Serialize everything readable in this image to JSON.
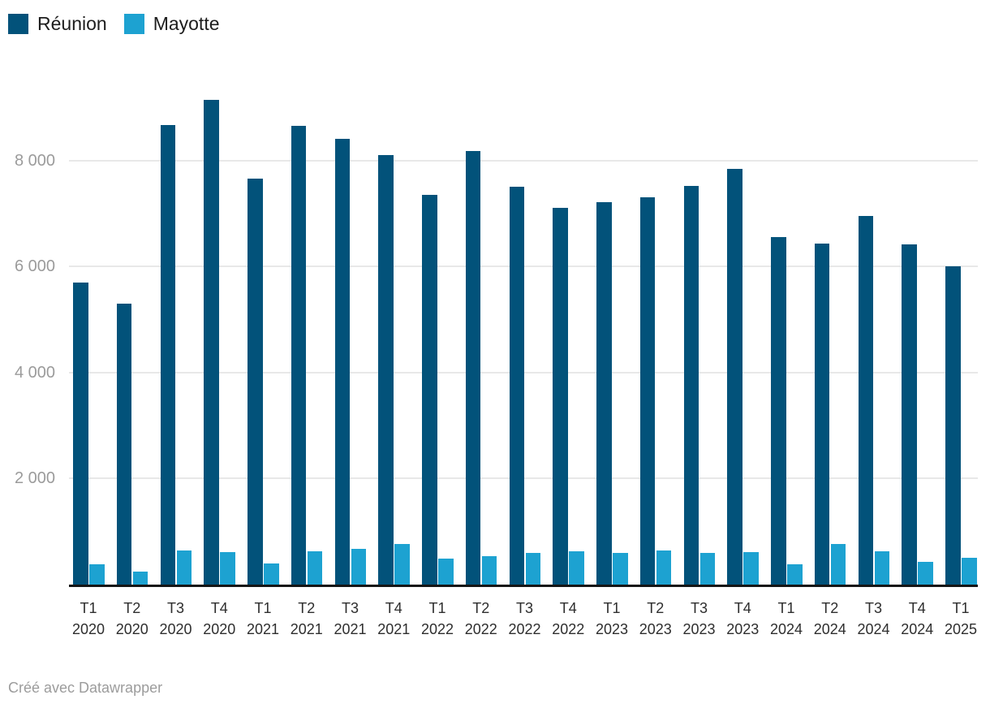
{
  "legend": {
    "items": [
      {
        "label": "Réunion",
        "color": "#02527a"
      },
      {
        "label": "Mayotte",
        "color": "#1da2d1"
      }
    ]
  },
  "footer": {
    "credit": "Créé avec Datawrapper"
  },
  "chart_data": {
    "type": "bar",
    "title": "",
    "xlabel": "",
    "ylabel": "",
    "ylim": [
      0,
      9700
    ],
    "grid": true,
    "legend_position": "top-left",
    "yticks": [
      {
        "value": 2000,
        "label": "2 000"
      },
      {
        "value": 4000,
        "label": "4 000"
      },
      {
        "value": 6000,
        "label": "6 000"
      },
      {
        "value": 8000,
        "label": "8 000"
      }
    ],
    "categories": [
      {
        "q": "T1",
        "year": "2020"
      },
      {
        "q": "T2",
        "year": "2020"
      },
      {
        "q": "T3",
        "year": "2020"
      },
      {
        "q": "T4",
        "year": "2020"
      },
      {
        "q": "T1",
        "year": "2021"
      },
      {
        "q": "T2",
        "year": "2021"
      },
      {
        "q": "T3",
        "year": "2021"
      },
      {
        "q": "T4",
        "year": "2021"
      },
      {
        "q": "T1",
        "year": "2022"
      },
      {
        "q": "T2",
        "year": "2022"
      },
      {
        "q": "T3",
        "year": "2022"
      },
      {
        "q": "T4",
        "year": "2022"
      },
      {
        "q": "T1",
        "year": "2023"
      },
      {
        "q": "T2",
        "year": "2023"
      },
      {
        "q": "T3",
        "year": "2023"
      },
      {
        "q": "T4",
        "year": "2023"
      },
      {
        "q": "T1",
        "year": "2024"
      },
      {
        "q": "T2",
        "year": "2024"
      },
      {
        "q": "T3",
        "year": "2024"
      },
      {
        "q": "T4",
        "year": "2024"
      },
      {
        "q": "T1",
        "year": "2025"
      }
    ],
    "series": [
      {
        "name": "Réunion",
        "color": "#02527a",
        "values": [
          5700,
          5300,
          8670,
          9150,
          7650,
          8650,
          8400,
          8100,
          7350,
          8170,
          7500,
          7100,
          7220,
          7300,
          7520,
          7840,
          6550,
          6430,
          6950,
          6410,
          6010
        ]
      },
      {
        "name": "Mayotte",
        "color": "#1da2d1",
        "values": [
          380,
          250,
          650,
          620,
          400,
          630,
          680,
          760,
          490,
          530,
          600,
          630,
          600,
          650,
          600,
          610,
          380,
          770,
          630,
          430,
          510
        ]
      }
    ]
  }
}
